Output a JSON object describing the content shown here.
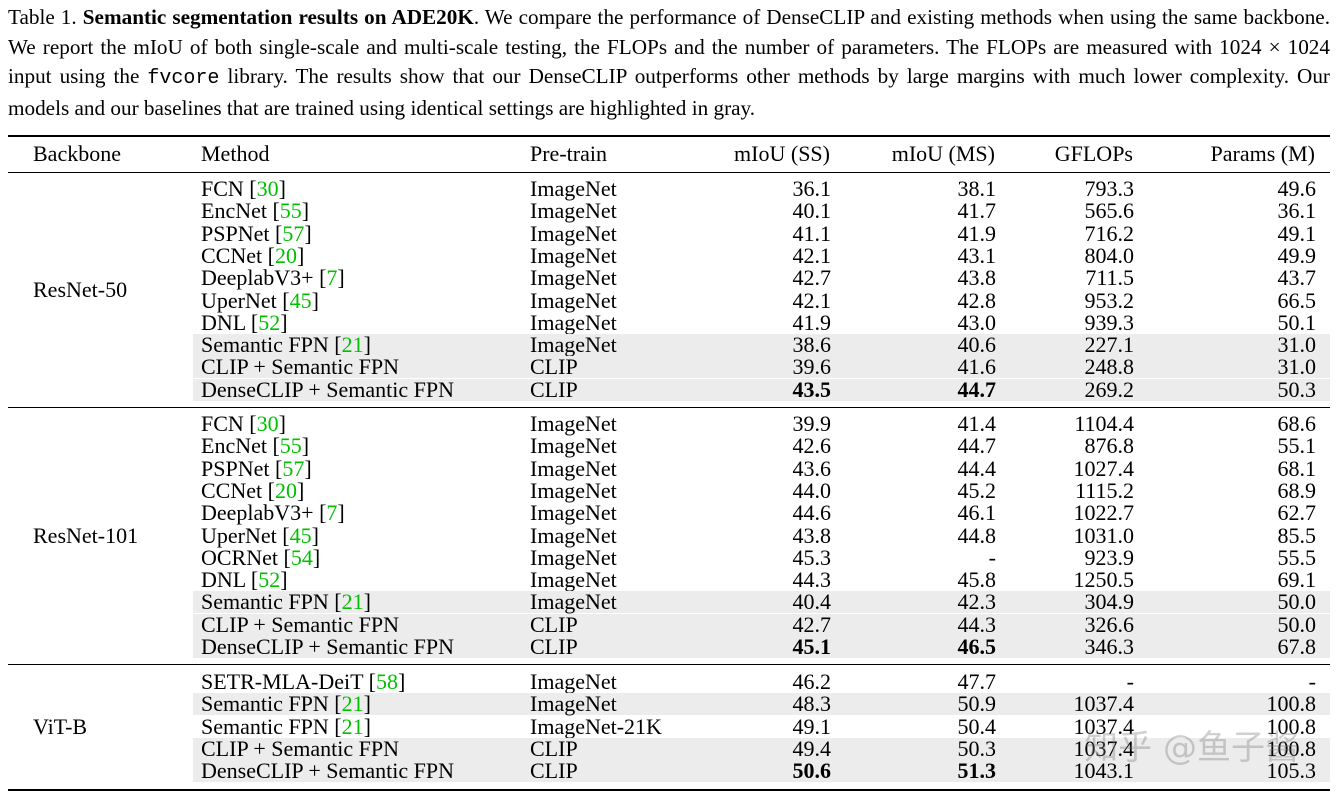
{
  "caption": {
    "label": "Table 1.",
    "title": "Semantic segmentation results on ADE20K",
    "text_1": ". We compare the performance of DenseCLIP and existing methods when using the same backbone. We report the mIoU of both single-scale and multi-scale testing, the FLOPs and the number of parameters. The FLOPs are measured with 1024 × 1024 input using the ",
    "code": "fvcore",
    "text_2": " library. The results show that our DenseCLIP outperforms other methods by large margins with much lower complexity. Our models and our baselines that are trained using identical settings are highlighted in gray."
  },
  "headers": {
    "backbone": "Backbone",
    "method": "Method",
    "pretrain": "Pre-train",
    "miou_ss": "mIoU (SS)",
    "miou_ms": "mIoU (MS)",
    "gflops": "GFLOPs",
    "params": "Params (M)"
  },
  "groups": [
    {
      "backbone": "ResNet-50",
      "rows": [
        {
          "name": "FCN",
          "ref": "30",
          "pretrain": "ImageNet",
          "ss": "36.1",
          "ms": "38.1",
          "gflops": "793.3",
          "params": "49.6",
          "gray": false,
          "bold": false
        },
        {
          "name": "EncNet",
          "ref": "55",
          "pretrain": "ImageNet",
          "ss": "40.1",
          "ms": "41.7",
          "gflops": "565.6",
          "params": "36.1",
          "gray": false,
          "bold": false
        },
        {
          "name": "PSPNet",
          "ref": "57",
          "pretrain": "ImageNet",
          "ss": "41.1",
          "ms": "41.9",
          "gflops": "716.2",
          "params": "49.1",
          "gray": false,
          "bold": false
        },
        {
          "name": "CCNet",
          "ref": "20",
          "pretrain": "ImageNet",
          "ss": "42.1",
          "ms": "43.1",
          "gflops": "804.0",
          "params": "49.9",
          "gray": false,
          "bold": false
        },
        {
          "name": "DeeplabV3+",
          "ref": "7",
          "pretrain": "ImageNet",
          "ss": "42.7",
          "ms": "43.8",
          "gflops": "711.5",
          "params": "43.7",
          "gray": false,
          "bold": false
        },
        {
          "name": "UperNet",
          "ref": "45",
          "pretrain": "ImageNet",
          "ss": "42.1",
          "ms": "42.8",
          "gflops": "953.2",
          "params": "66.5",
          "gray": false,
          "bold": false
        },
        {
          "name": "DNL",
          "ref": "52",
          "pretrain": "ImageNet",
          "ss": "41.9",
          "ms": "43.0",
          "gflops": "939.3",
          "params": "50.1",
          "gray": false,
          "bold": false
        },
        {
          "name": "Semantic FPN",
          "ref": "21",
          "pretrain": "ImageNet",
          "ss": "38.6",
          "ms": "40.6",
          "gflops": "227.1",
          "params": "31.0",
          "gray": true,
          "bold": false
        },
        {
          "name": "CLIP + Semantic FPN",
          "ref": "",
          "pretrain": "CLIP",
          "ss": "39.6",
          "ms": "41.6",
          "gflops": "248.8",
          "params": "31.0",
          "gray": true,
          "bold": false
        },
        {
          "name": "DenseCLIP + Semantic FPN",
          "ref": "",
          "pretrain": "CLIP",
          "ss": "43.5",
          "ms": "44.7",
          "gflops": "269.2",
          "params": "50.3",
          "gray": true,
          "bold": true
        }
      ]
    },
    {
      "backbone": "ResNet-101",
      "rows": [
        {
          "name": "FCN",
          "ref": "30",
          "pretrain": "ImageNet",
          "ss": "39.9",
          "ms": "41.4",
          "gflops": "1104.4",
          "params": "68.6",
          "gray": false,
          "bold": false
        },
        {
          "name": "EncNet",
          "ref": "55",
          "pretrain": "ImageNet",
          "ss": "42.6",
          "ms": "44.7",
          "gflops": "876.8",
          "params": "55.1",
          "gray": false,
          "bold": false
        },
        {
          "name": "PSPNet",
          "ref": "57",
          "pretrain": "ImageNet",
          "ss": "43.6",
          "ms": "44.4",
          "gflops": "1027.4",
          "params": "68.1",
          "gray": false,
          "bold": false
        },
        {
          "name": "CCNet",
          "ref": "20",
          "pretrain": "ImageNet",
          "ss": "44.0",
          "ms": "45.2",
          "gflops": "1115.2",
          "params": "68.9",
          "gray": false,
          "bold": false
        },
        {
          "name": "DeeplabV3+",
          "ref": "7",
          "pretrain": "ImageNet",
          "ss": "44.6",
          "ms": "46.1",
          "gflops": "1022.7",
          "params": "62.7",
          "gray": false,
          "bold": false
        },
        {
          "name": "UperNet",
          "ref": "45",
          "pretrain": "ImageNet",
          "ss": "43.8",
          "ms": "44.8",
          "gflops": "1031.0",
          "params": "85.5",
          "gray": false,
          "bold": false
        },
        {
          "name": "OCRNet",
          "ref": "54",
          "pretrain": "ImageNet",
          "ss": "45.3",
          "ms": "-",
          "gflops": "923.9",
          "params": "55.5",
          "gray": false,
          "bold": false
        },
        {
          "name": "DNL",
          "ref": "52",
          "pretrain": "ImageNet",
          "ss": "44.3",
          "ms": "45.8",
          "gflops": "1250.5",
          "params": "69.1",
          "gray": false,
          "bold": false
        },
        {
          "name": "Semantic FPN",
          "ref": "21",
          "pretrain": "ImageNet",
          "ss": "40.4",
          "ms": "42.3",
          "gflops": "304.9",
          "params": "50.0",
          "gray": true,
          "bold": false
        },
        {
          "name": "CLIP + Semantic FPN",
          "ref": "",
          "pretrain": "CLIP",
          "ss": "42.7",
          "ms": "44.3",
          "gflops": "326.6",
          "params": "50.0",
          "gray": true,
          "bold": false
        },
        {
          "name": "DenseCLIP + Semantic FPN",
          "ref": "",
          "pretrain": "CLIP",
          "ss": "45.1",
          "ms": "46.5",
          "gflops": "346.3",
          "params": "67.8",
          "gray": true,
          "bold": true
        }
      ]
    },
    {
      "backbone": "ViT-B",
      "rows": [
        {
          "name": "SETR-MLA-DeiT",
          "ref": "58",
          "pretrain": "ImageNet",
          "ss": "46.2",
          "ms": "47.7",
          "gflops": "-",
          "params": "-",
          "gray": false,
          "bold": false
        },
        {
          "name": "Semantic FPN",
          "ref": "21",
          "pretrain": "ImageNet",
          "ss": "48.3",
          "ms": "50.9",
          "gflops": "1037.4",
          "params": "100.8",
          "gray": true,
          "bold": false
        },
        {
          "name": "Semantic FPN",
          "ref": "21",
          "pretrain": "ImageNet-21K",
          "ss": "49.1",
          "ms": "50.4",
          "gflops": "1037.4",
          "params": "100.8",
          "gray": false,
          "bold": false
        },
        {
          "name": "CLIP + Semantic FPN",
          "ref": "",
          "pretrain": "CLIP",
          "ss": "49.4",
          "ms": "50.3",
          "gflops": "1037.4",
          "params": "100.8",
          "gray": true,
          "bold": false
        },
        {
          "name": "DenseCLIP + Semantic FPN",
          "ref": "",
          "pretrain": "CLIP",
          "ss": "50.6",
          "ms": "51.3",
          "gflops": "1043.1",
          "params": "105.3",
          "gray": true,
          "bold": true
        }
      ]
    }
  ],
  "watermark": "知乎 @鱼子酱",
  "colors": {
    "ref_link": "#00c000",
    "highlight": "#ececec"
  }
}
